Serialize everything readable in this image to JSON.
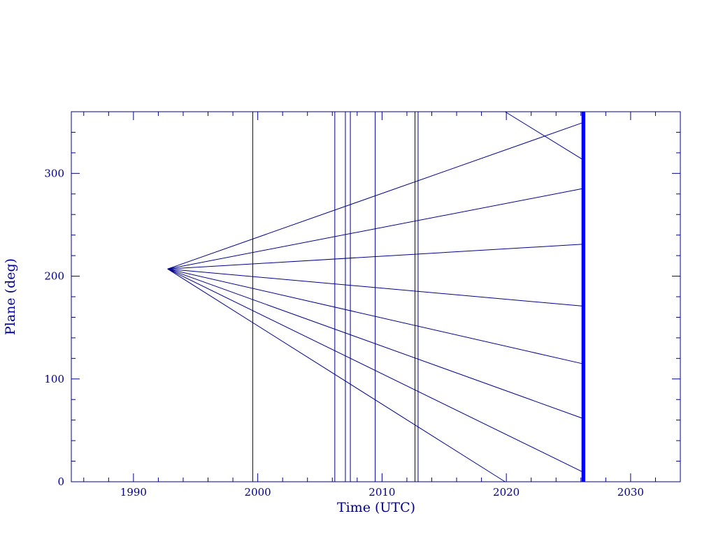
{
  "chart_data": {
    "type": "line",
    "xlabel": "Time (UTC)",
    "ylabel": "Plane (deg)",
    "xlim": [
      1985,
      2034
    ],
    "ylim": [
      0,
      360
    ],
    "xticks": [
      1990,
      2000,
      2010,
      2020,
      2030
    ],
    "yticks": [
      0,
      100,
      200,
      300
    ],
    "xminor": [
      1986,
      1988,
      1992,
      1994,
      1996,
      1998,
      2002,
      2004,
      2006,
      2008,
      2012,
      2014,
      2016,
      2018,
      2022,
      2024,
      2026,
      2028,
      2032
    ],
    "yminor": [
      20,
      40,
      60,
      80,
      120,
      140,
      160,
      180,
      220,
      240,
      260,
      280,
      320,
      340
    ],
    "axis_color": "#00008b",
    "series": [
      {
        "color": "#00008b",
        "x": [
          1992.75,
          2026.07
        ],
        "values": [
          207,
          349
        ]
      },
      {
        "color": "#00008b",
        "x": [
          1992.75,
          2026.07
        ],
        "values": [
          207,
          285
        ]
      },
      {
        "color": "#00008b",
        "x": [
          1992.75,
          2026.07
        ],
        "values": [
          207,
          231
        ]
      },
      {
        "color": "#00008b",
        "x": [
          1992.75,
          2026.07
        ],
        "values": [
          207,
          171
        ]
      },
      {
        "color": "#00008b",
        "x": [
          1992.75,
          2026.07
        ],
        "values": [
          207,
          115
        ]
      },
      {
        "color": "#00008b",
        "x": [
          1992.75,
          2026.07
        ],
        "values": [
          207,
          62
        ]
      },
      {
        "color": "#00008b",
        "x": [
          1992.75,
          2026.07
        ],
        "values": [
          207,
          10
        ]
      },
      {
        "color": "#00008b",
        "x": [
          1992.75,
          2019.9
        ],
        "values": [
          207,
          0
        ]
      },
      {
        "color": "#00008b",
        "x": [
          2019.9,
          2026.07
        ],
        "values": [
          360,
          314
        ]
      }
    ],
    "vlines": {
      "color": "#00008b",
      "x": [
        1999.6,
        2006.2,
        2007.05,
        2007.45,
        2009.45,
        2012.65,
        2012.9
      ]
    },
    "band": {
      "color": "#0000ff",
      "x": [
        2026.05,
        2026.35
      ]
    }
  }
}
